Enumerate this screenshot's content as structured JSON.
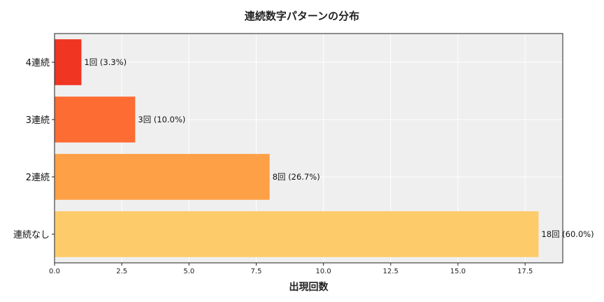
{
  "chart_data": {
    "type": "bar",
    "orientation": "horizontal",
    "title": "連続数字パターンの分布",
    "xlabel": "出現回数",
    "ylabel": "",
    "categories": [
      "4連続",
      "3連続",
      "2連続",
      "連続なし"
    ],
    "values": [
      1,
      3,
      8,
      18
    ],
    "data_labels": [
      "1回 (3.3%)",
      "3回 (10.0%)",
      "8回 (26.7%)",
      "18回 (60.0%)"
    ],
    "colors": [
      "#f03523",
      "#fd6c33",
      "#fda046",
      "#fecb6a"
    ],
    "xlim": [
      0,
      18.9
    ],
    "xticks": [
      0,
      2.5,
      5,
      7.5,
      10,
      12.5,
      15,
      17.5
    ],
    "xtick_labels": [
      "0.0",
      "2.5",
      "5.0",
      "7.5",
      "10.0",
      "12.5",
      "15.0",
      "17.5"
    ],
    "grid": true,
    "background": "#efefef"
  }
}
